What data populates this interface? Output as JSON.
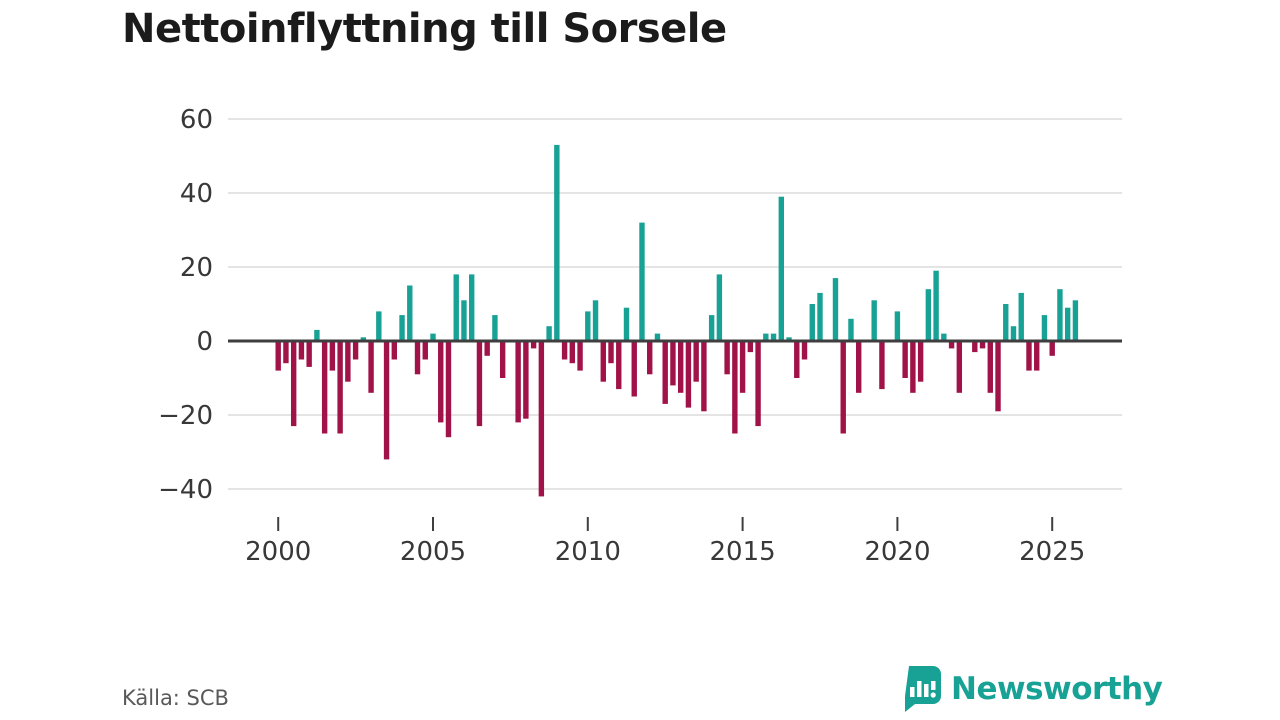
{
  "title": "Nettoinflyttning till Sorsele",
  "source_label": "Källa: SCB",
  "brand": {
    "name": "Newsworthy"
  },
  "colors": {
    "positive": "#18a295",
    "negative": "#a01248",
    "grid": "#dcdcdc",
    "zero_line": "#3e3e3e",
    "axis_text": "#383838",
    "tick_mark": "#3f3f3f"
  },
  "chart_data": {
    "type": "bar",
    "title": "Nettoinflyttning till Sorsele",
    "frequency": "quarterly",
    "start_year": 2000,
    "start_quarter": 1,
    "end_year": 2025,
    "end_quarter": 4,
    "x_ticks": [
      2000,
      2005,
      2010,
      2015,
      2020,
      2025
    ],
    "y_ticks": [
      60,
      40,
      20,
      0,
      -20,
      -40
    ],
    "ylim": [
      -45,
      62
    ],
    "grid": true,
    "values": [
      -8,
      -6,
      -23,
      -5,
      -7,
      3,
      -25,
      -8,
      -25,
      -11,
      -5,
      1,
      -14,
      8,
      -32,
      -5,
      7,
      15,
      -9,
      -5,
      2,
      -22,
      -26,
      18,
      11,
      18,
      -23,
      -4,
      7,
      -10,
      0,
      -22,
      -21,
      -2,
      -42,
      4,
      53,
      -5,
      -6,
      -8,
      8,
      11,
      -11,
      -6,
      -13,
      9,
      -15,
      32,
      -9,
      2,
      -17,
      -12,
      -14,
      -18,
      -11,
      -19,
      7,
      18,
      -9,
      -25,
      -14,
      -3,
      -23,
      2,
      2,
      39,
      1,
      -10,
      -5,
      10,
      13,
      0,
      17,
      -25,
      6,
      -14,
      0,
      11,
      -13,
      0,
      8,
      -10,
      -14,
      -11,
      14,
      19,
      2,
      -2,
      -14,
      0,
      -3,
      -2,
      -14,
      -19,
      10,
      4,
      13,
      -8,
      -8,
      7,
      -4,
      14,
      9,
      11
    ]
  }
}
